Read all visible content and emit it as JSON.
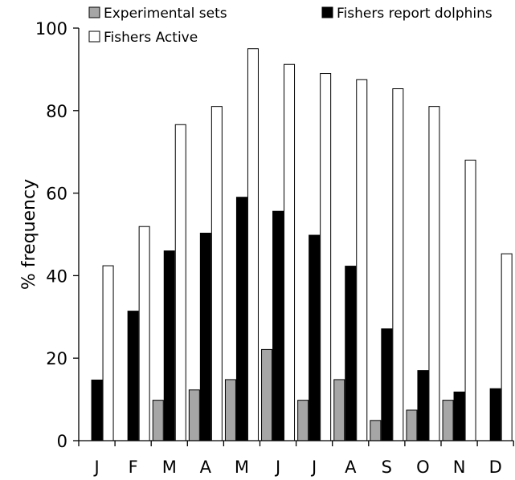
{
  "chart_data": {
    "type": "bar",
    "categories": [
      "J",
      "F",
      "M",
      "A",
      "M",
      "J",
      "J",
      "A",
      "S",
      "O",
      "N",
      "D"
    ],
    "series": [
      {
        "name": "Experimental sets",
        "color": "#a6a6a6",
        "values": [
          0,
          0,
          9.8,
          12.3,
          14.8,
          22.1,
          9.8,
          14.8,
          4.9,
          7.4,
          9.8,
          0
        ]
      },
      {
        "name": "Fishers report dolphins",
        "color": "#000000",
        "values": [
          14.7,
          31.4,
          46,
          50.3,
          59,
          55.6,
          49.8,
          42.3,
          27.1,
          17,
          11.8,
          12.6
        ]
      },
      {
        "name": "Fishers Active",
        "color": "#ffffff",
        "values": [
          42.4,
          51.9,
          76.6,
          81,
          95,
          91.2,
          89,
          87.5,
          85.3,
          81,
          68,
          45.3
        ]
      }
    ],
    "xlabel": "",
    "ylabel": "% frequency",
    "ylim": [
      0,
      100
    ],
    "yticks": [
      0,
      20,
      40,
      60,
      80,
      100
    ],
    "grid": false,
    "legend_placement": "top"
  }
}
